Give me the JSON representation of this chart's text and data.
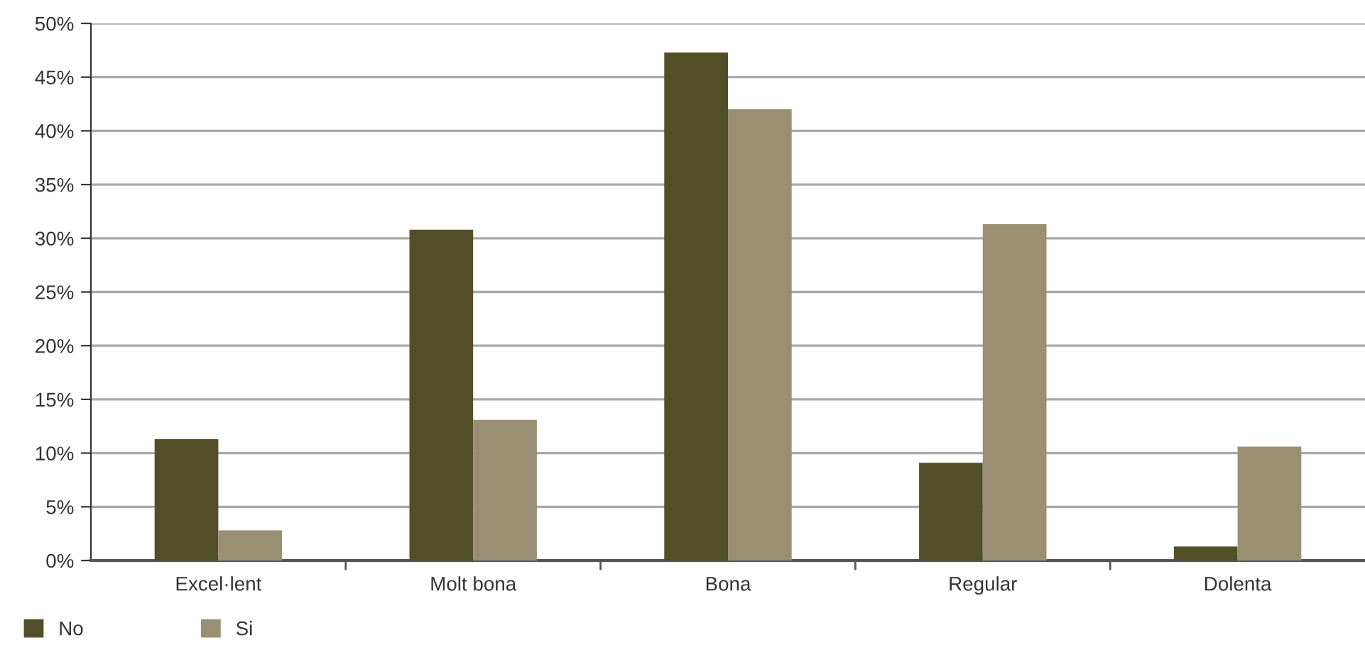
{
  "chart_data": {
    "type": "bar",
    "categories": [
      "Excel·lent",
      "Molt bona",
      "Bona",
      "Regular",
      "Dolenta"
    ],
    "series": [
      {
        "name": "No",
        "color": "#524f28",
        "values": [
          11.3,
          30.8,
          47.3,
          9.1,
          1.3
        ]
      },
      {
        "name": "Si",
        "color": "#998f72",
        "values": [
          2.8,
          13.1,
          42.0,
          31.3,
          10.6
        ]
      }
    ],
    "ylim": [
      0,
      50
    ],
    "yticks": [
      {
        "value": 0,
        "label": "0%"
      },
      {
        "value": 5,
        "label": "5%"
      },
      {
        "value": 10,
        "label": "10%"
      },
      {
        "value": 15,
        "label": "15%"
      },
      {
        "value": 20,
        "label": "20%"
      },
      {
        "value": 25,
        "label": "25%"
      },
      {
        "value": 30,
        "label": "30%"
      },
      {
        "value": 35,
        "label": "35%"
      },
      {
        "value": 40,
        "label": "40%"
      },
      {
        "value": 45,
        "label": "45%"
      },
      {
        "value": 50,
        "label": "50%"
      }
    ],
    "grid": "y",
    "legend": "bottom left"
  }
}
